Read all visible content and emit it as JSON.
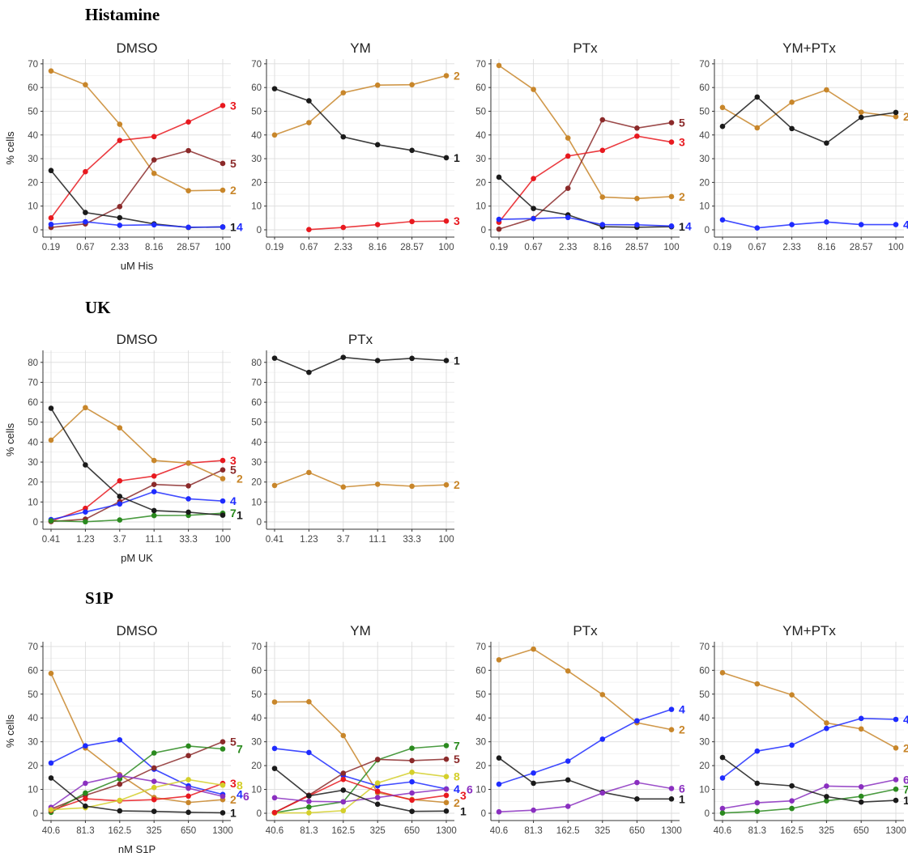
{
  "colors": {
    "1": "#1a1a1a",
    "2": "#c8862a",
    "3": "#e8191f",
    "4": "#1e2bff",
    "5": "#8b2a2a",
    "6": "#8a2fc0",
    "7": "#2a8a1e",
    "8": "#d4cf2a"
  },
  "sections": [
    {
      "title": "Histamine"
    },
    {
      "title": "UK"
    },
    {
      "title": "S1P"
    }
  ],
  "chart_data": [
    {
      "type": "line",
      "title": "DMSO",
      "xlabel": "uM His",
      "ylabel": "% cells",
      "ylim": [
        0,
        72
      ],
      "yticks": [
        0,
        10,
        20,
        30,
        40,
        50,
        60,
        70
      ],
      "categories": [
        "0.19",
        "0.67",
        "2.33",
        "8.16",
        "28.57",
        "100"
      ],
      "series": [
        {
          "name": "2",
          "values": [
            67,
            61.2,
            44.5,
            23.8,
            16.5,
            16.7
          ]
        },
        {
          "name": "3",
          "values": [
            5,
            24.5,
            37.7,
            39.3,
            45.5,
            52.4
          ]
        },
        {
          "name": "5",
          "values": [
            1,
            2.5,
            9.8,
            29.5,
            33.4,
            28
          ]
        },
        {
          "name": "1",
          "values": [
            25,
            7.3,
            5.1,
            2.5,
            1,
            1.2
          ]
        },
        {
          "name": "4",
          "values": [
            2.3,
            3.4,
            1.9,
            2.1,
            1.1,
            1.2
          ]
        }
      ]
    },
    {
      "type": "line",
      "title": "YM",
      "xlabel": "",
      "ylabel": "",
      "ylim": [
        0,
        72
      ],
      "yticks": [
        0,
        10,
        20,
        30,
        40,
        50,
        60,
        70
      ],
      "categories": [
        "0.19",
        "0.67",
        "2.33",
        "8.16",
        "28.57",
        "100"
      ],
      "series": [
        {
          "name": "2",
          "values": [
            40,
            45.2,
            57.8,
            61,
            61.2,
            65
          ]
        },
        {
          "name": "1",
          "values": [
            59.5,
            54.4,
            39.2,
            35.9,
            33.5,
            30.4
          ]
        },
        {
          "name": "3",
          "values": [
            null,
            0.1,
            1,
            2.2,
            3.5,
            3.7
          ]
        }
      ]
    },
    {
      "type": "line",
      "title": "PTx",
      "xlabel": "",
      "ylabel": "",
      "ylim": [
        0,
        72
      ],
      "yticks": [
        0,
        10,
        20,
        30,
        40,
        50,
        60,
        70
      ],
      "categories": [
        "0.19",
        "0.67",
        "2.33",
        "8.16",
        "28.57",
        "100"
      ],
      "series": [
        {
          "name": "2",
          "values": [
            69.3,
            59.2,
            38.7,
            13.8,
            13.2,
            14
          ]
        },
        {
          "name": "5",
          "values": [
            0.3,
            4.8,
            17.5,
            46.4,
            42.9,
            45.2
          ]
        },
        {
          "name": "3",
          "values": [
            3.2,
            21.6,
            31.1,
            33.5,
            39.5,
            37
          ]
        },
        {
          "name": "1",
          "values": [
            22.2,
            9,
            6.3,
            1.3,
            1.1,
            1.3
          ]
        },
        {
          "name": "4",
          "values": [
            4.4,
            4.7,
            5.2,
            2.2,
            2.1,
            1.6
          ]
        }
      ]
    },
    {
      "type": "line",
      "title": "YM+PTx",
      "xlabel": "",
      "ylabel": "",
      "ylim": [
        0,
        72
      ],
      "yticks": [
        0,
        10,
        20,
        30,
        40,
        50,
        60,
        70
      ],
      "categories": [
        "0.19",
        "0.67",
        "2.33",
        "8.16",
        "28.57",
        "100"
      ],
      "series": [
        {
          "name": "2",
          "values": [
            51.6,
            43,
            53.8,
            59,
            49.6,
            47.7
          ]
        },
        {
          "name": "1",
          "values": [
            43.6,
            56,
            42.7,
            36.6,
            47.4,
            49.5
          ]
        },
        {
          "name": "4",
          "values": [
            4.2,
            0.8,
            2.2,
            3.3,
            2.2,
            2.2
          ]
        }
      ]
    },
    {
      "type": "line",
      "title": "DMSO",
      "xlabel": "pM UK",
      "ylabel": "% cells",
      "ylim": [
        0,
        86
      ],
      "yticks": [
        0,
        10,
        20,
        30,
        40,
        50,
        60,
        70,
        80
      ],
      "categories": [
        "0.41",
        "1.23",
        "3.7",
        "11.1",
        "33.3",
        "100"
      ],
      "series": [
        {
          "name": "3",
          "values": [
            0.3,
            6.8,
            20.6,
            23,
            29.5,
            30.8
          ]
        },
        {
          "name": "5",
          "values": [
            0.2,
            1.4,
            10.2,
            18.8,
            18.1,
            26.1
          ]
        },
        {
          "name": "2",
          "values": [
            41,
            57.3,
            47.2,
            30.8,
            29.5,
            21.7
          ]
        },
        {
          "name": "4",
          "values": [
            1.2,
            5,
            9,
            15.2,
            11.6,
            10.5
          ]
        },
        {
          "name": "7",
          "values": [
            0.6,
            0.1,
            1,
            3.2,
            3.3,
            4.4
          ]
        },
        {
          "name": "1",
          "values": [
            57,
            28.6,
            12.8,
            5.7,
            4.9,
            3.4
          ]
        }
      ]
    },
    {
      "type": "line",
      "title": "PTx",
      "xlabel": "",
      "ylabel": "",
      "ylim": [
        0,
        86
      ],
      "yticks": [
        0,
        10,
        20,
        30,
        40,
        50,
        60,
        70,
        80
      ],
      "categories": [
        "0.41",
        "1.23",
        "3.7",
        "11.1",
        "33.3",
        "100"
      ],
      "series": [
        {
          "name": "1",
          "values": [
            82.1,
            75,
            82.5,
            80.9,
            82,
            80.9
          ]
        },
        {
          "name": "2",
          "values": [
            18.3,
            24.8,
            17.5,
            18.9,
            17.9,
            18.6
          ]
        }
      ]
    },
    {
      "type": "line",
      "title": "DMSO",
      "xlabel": "nM S1P",
      "ylabel": "% cells",
      "ylim": [
        0,
        72
      ],
      "yticks": [
        0,
        10,
        20,
        30,
        40,
        50,
        60,
        70
      ],
      "categories": [
        "40.6",
        "81.3",
        "162.5",
        "325",
        "650",
        "1300"
      ],
      "series": [
        {
          "name": "2",
          "values": [
            58.7,
            27.4,
            16.2,
            6.6,
            4.5,
            5.7
          ]
        },
        {
          "name": "4",
          "values": [
            21.1,
            28.3,
            30.8,
            18.5,
            11.5,
            7.9
          ]
        },
        {
          "name": "5",
          "values": [
            1.8,
            7.5,
            12.2,
            19,
            24.2,
            30
          ]
        },
        {
          "name": "7",
          "values": [
            0.4,
            8.5,
            14.4,
            25.3,
            28.2,
            27
          ]
        },
        {
          "name": "6",
          "values": [
            2.5,
            12.6,
            15.8,
            13.4,
            10.5,
            7.1
          ]
        },
        {
          "name": "3",
          "values": [
            1.2,
            6.1,
            5.2,
            5.7,
            7.2,
            12.5
          ]
        },
        {
          "name": "8",
          "values": [
            1.5,
            2.3,
            5.4,
            10.8,
            14.1,
            11.8
          ]
        },
        {
          "name": "1",
          "values": [
            14.8,
            3,
            1,
            0.8,
            0.4,
            0.2
          ]
        }
      ]
    },
    {
      "type": "line",
      "title": "YM",
      "xlabel": "",
      "ylabel": "",
      "ylim": [
        0,
        72
      ],
      "yticks": [
        0,
        10,
        20,
        30,
        40,
        50,
        60,
        70
      ],
      "categories": [
        "40.6",
        "81.3",
        "162.5",
        "325",
        "650",
        "1300"
      ],
      "series": [
        {
          "name": "2",
          "values": [
            46.7,
            46.8,
            32.6,
            8.6,
            5.8,
            4.5
          ]
        },
        {
          "name": "4",
          "values": [
            27.2,
            25.5,
            15.8,
            11.5,
            13.2,
            10.2
          ]
        },
        {
          "name": "7",
          "values": [
            0.2,
            2.6,
            4.8,
            22.4,
            27.3,
            28.4
          ]
        },
        {
          "name": "5",
          "values": [
            0.3,
            7.6,
            16.8,
            22.6,
            22.1,
            22.7
          ]
        },
        {
          "name": "8",
          "values": [
            0.1,
            0.2,
            1.1,
            12.7,
            17.2,
            15.4
          ]
        },
        {
          "name": "3",
          "values": [
            0.3,
            7.3,
            14.2,
            9.2,
            5.5,
            7.5
          ]
        },
        {
          "name": "6",
          "values": [
            6.5,
            5,
            4.8,
            6.6,
            8.5,
            10.1
          ]
        },
        {
          "name": "1",
          "values": [
            18.8,
            7.3,
            9.7,
            3.8,
            0.8,
            0.9
          ]
        }
      ]
    },
    {
      "type": "line",
      "title": "PTx",
      "xlabel": "",
      "ylabel": "",
      "ylim": [
        0,
        72
      ],
      "yticks": [
        0,
        10,
        20,
        30,
        40,
        50,
        60,
        70
      ],
      "categories": [
        "40.6",
        "81.3",
        "162.5",
        "325",
        "650",
        "1300"
      ],
      "series": [
        {
          "name": "2",
          "values": [
            64.4,
            68.9,
            59.7,
            49.8,
            38,
            35.1
          ]
        },
        {
          "name": "4",
          "values": [
            12.2,
            16.9,
            21.9,
            31.1,
            38.8,
            43.6
          ]
        },
        {
          "name": "1",
          "values": [
            23.2,
            12.6,
            14,
            8.8,
            6,
            6
          ]
        },
        {
          "name": "6",
          "values": [
            0.6,
            1.3,
            2.9,
            8.5,
            12.9,
            10.4
          ]
        }
      ]
    },
    {
      "type": "line",
      "title": "YM+PTx",
      "xlabel": "",
      "ylabel": "",
      "ylim": [
        0,
        72
      ],
      "yticks": [
        0,
        10,
        20,
        30,
        40,
        50,
        60,
        70
      ],
      "categories": [
        "40.6",
        "81.3",
        "162.5",
        "325",
        "650",
        "1300"
      ],
      "series": [
        {
          "name": "2",
          "values": [
            59,
            54.3,
            49.7,
            37.9,
            35.4,
            27.4
          ]
        },
        {
          "name": "4",
          "values": [
            14.8,
            26.1,
            28.6,
            35.6,
            39.8,
            39.4
          ]
        },
        {
          "name": "6",
          "values": [
            2,
            4.4,
            5.2,
            11.4,
            11.1,
            14.1
          ]
        },
        {
          "name": "7",
          "values": [
            0.1,
            0.8,
            2,
            5.2,
            7.1,
            10.1
          ]
        },
        {
          "name": "1",
          "values": [
            23.4,
            12.6,
            11.5,
            7,
            4.7,
            5.4
          ]
        }
      ]
    }
  ]
}
